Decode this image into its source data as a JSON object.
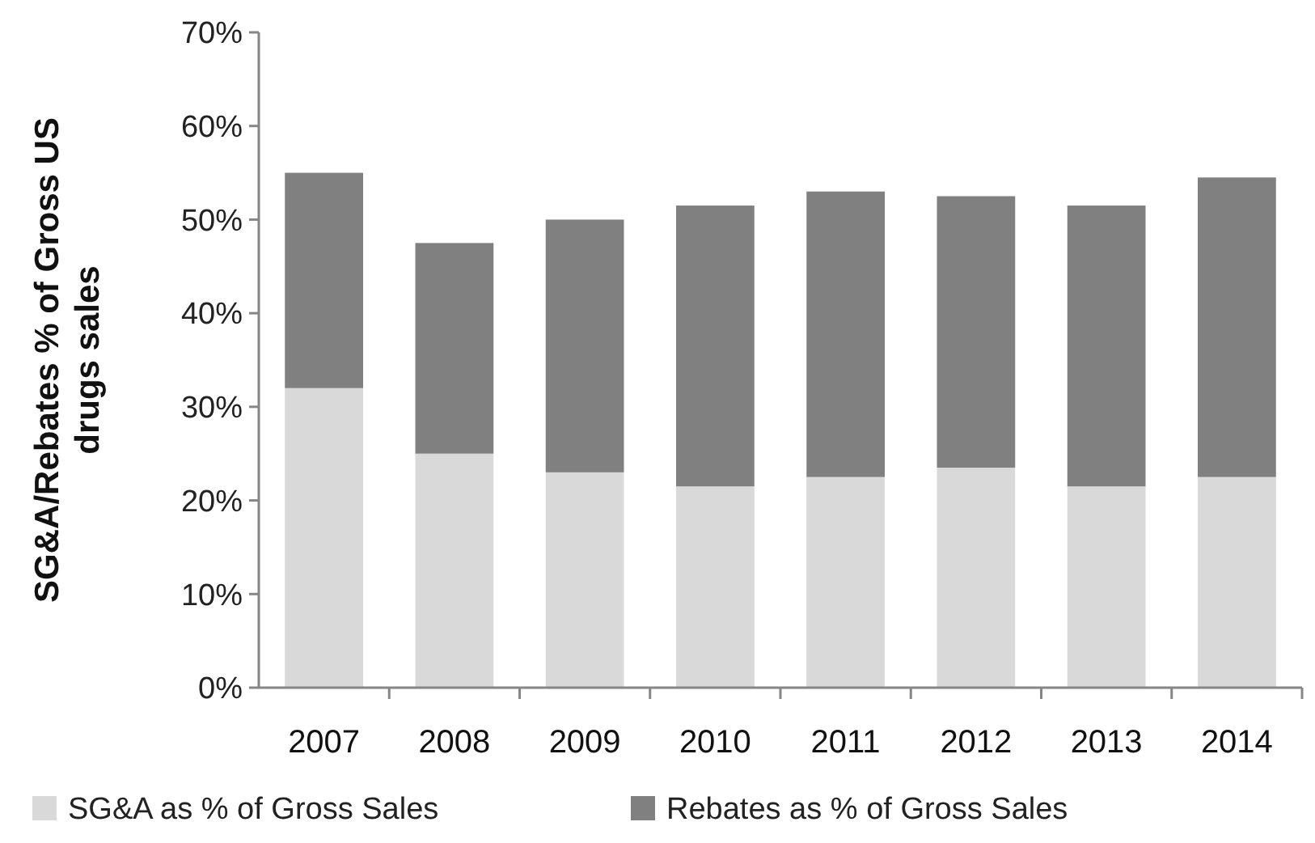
{
  "chart_data": {
    "type": "bar",
    "stacked": true,
    "ylabel": "SG&A/Rebates % of Gross US drugs sales",
    "categories": [
      "2007",
      "2008",
      "2009",
      "2010",
      "2011",
      "2012",
      "2013",
      "2014"
    ],
    "series": [
      {
        "name": "SG&A as % of Gross Sales",
        "color": "#d9d9d9",
        "values": [
          32,
          25,
          23,
          21.5,
          22.5,
          23.5,
          21.5,
          22.5
        ]
      },
      {
        "name": "Rebates as % of Gross Sales",
        "color": "#808080",
        "values": [
          23,
          22.5,
          27,
          30,
          30.5,
          29,
          30,
          32
        ]
      }
    ],
    "ylim": [
      0,
      70
    ],
    "yticks": [
      {
        "value": 0,
        "label": "0%"
      },
      {
        "value": 10,
        "label": "10%"
      },
      {
        "value": 20,
        "label": "20%"
      },
      {
        "value": 30,
        "label": "30%"
      },
      {
        "value": 40,
        "label": "40%"
      },
      {
        "value": 50,
        "label": "50%"
      },
      {
        "value": 60,
        "label": "60%"
      },
      {
        "value": 70,
        "label": "70%"
      }
    ],
    "grid": false,
    "legend": "bottom"
  }
}
